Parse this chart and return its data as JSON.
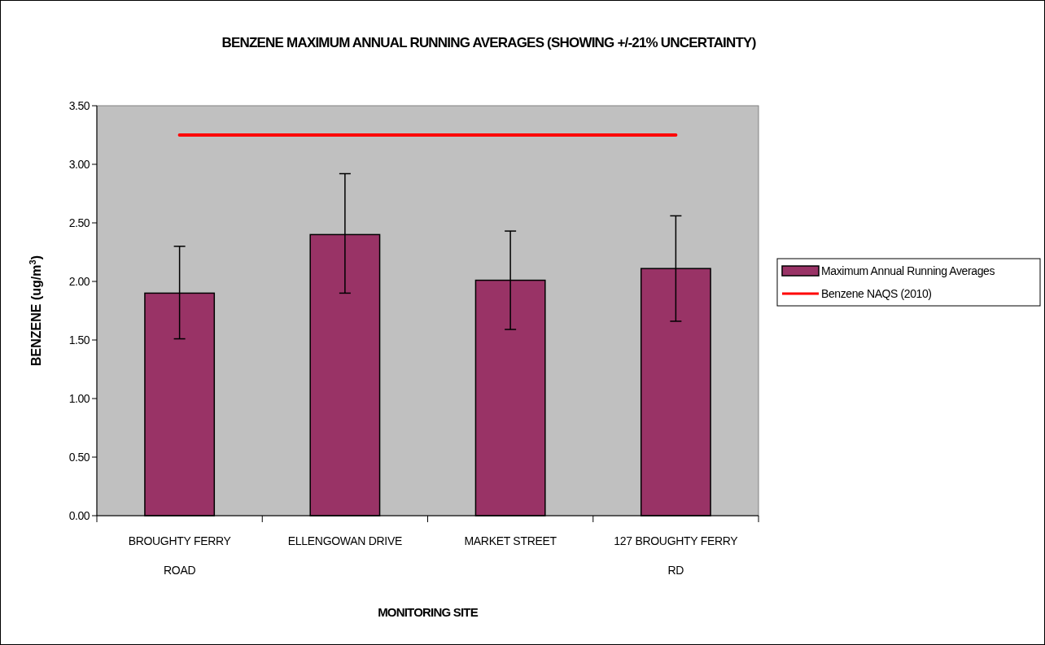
{
  "chart_data": {
    "type": "bar",
    "title": "BENZENE MAXIMUM ANNUAL RUNNING AVERAGES (SHOWING +/-21% UNCERTAINTY)",
    "xlabel": "MONITORING SITE",
    "ylabel": "BENZENE (ug/m$^{3}$)",
    "categories": [
      "BROUGHTY FERRY ROAD",
      "ELLENGOWAN DRIVE",
      "MARKET STREET",
      "127 BROUGHTY FERRY RD"
    ],
    "series": [
      {
        "name": "Maximum Annual Running Averages",
        "color": "#993366",
        "values": [
          1.9,
          2.4,
          2.01,
          2.11
        ],
        "errors": [
          [
            1.51,
            2.3
          ],
          [
            1.9,
            2.92
          ],
          [
            1.59,
            2.43
          ],
          [
            1.66,
            2.56
          ]
        ]
      },
      {
        "name": "Benzene NAQS (2010)",
        "type": "line",
        "color": "#ff0000",
        "values": [
          3.25,
          3.25,
          3.25,
          3.25
        ]
      }
    ],
    "ylim": [
      0,
      3.5
    ],
    "yticks": [
      {
        "value": 0,
        "label": "0.00"
      },
      {
        "value": 0.5,
        "label": "0.50"
      },
      {
        "value": 1,
        "label": "1.00"
      },
      {
        "value": 1.5,
        "label": "1.50"
      },
      {
        "value": 2,
        "label": "2.00"
      },
      {
        "value": 2.5,
        "label": "2.50"
      },
      {
        "value": 3,
        "label": "3.00"
      },
      {
        "value": 3.5,
        "label": "3.50"
      }
    ],
    "grid": false,
    "legend": "right",
    "marker": "none"
  }
}
